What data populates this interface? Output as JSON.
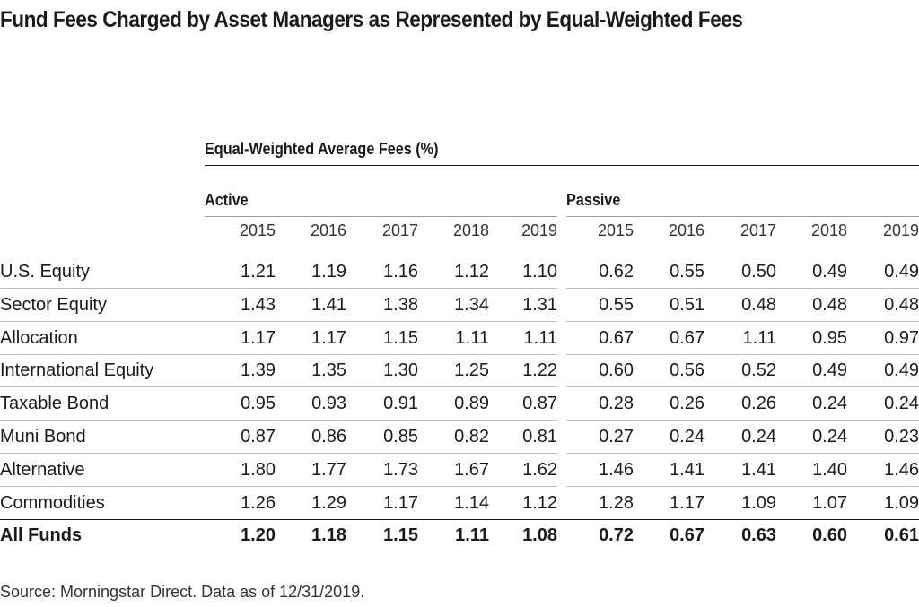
{
  "chart_data": {
    "type": "table",
    "title": "Fund Fees Charged by Asset Managers as Represented by Equal-Weighted Fees",
    "table_header": "Equal-Weighted Average Fees (%)",
    "groups": [
      "Active",
      "Passive"
    ],
    "years": [
      "2015",
      "2016",
      "2017",
      "2018",
      "2019"
    ],
    "rows": [
      {
        "label": "U.S. Equity",
        "active": [
          "1.21",
          "1.19",
          "1.16",
          "1.12",
          "1.10"
        ],
        "passive": [
          "0.62",
          "0.55",
          "0.50",
          "0.49",
          "0.49"
        ]
      },
      {
        "label": "Sector Equity",
        "active": [
          "1.43",
          "1.41",
          "1.38",
          "1.34",
          "1.31"
        ],
        "passive": [
          "0.55",
          "0.51",
          "0.48",
          "0.48",
          "0.48"
        ]
      },
      {
        "label": "Allocation",
        "active": [
          "1.17",
          "1.17",
          "1.15",
          "1.11",
          "1.11"
        ],
        "passive": [
          "0.67",
          "0.67",
          "1.11",
          "0.95",
          "0.97"
        ]
      },
      {
        "label": "International Equity",
        "active": [
          "1.39",
          "1.35",
          "1.30",
          "1.25",
          "1.22"
        ],
        "passive": [
          "0.60",
          "0.56",
          "0.52",
          "0.49",
          "0.49"
        ]
      },
      {
        "label": "Taxable Bond",
        "active": [
          "0.95",
          "0.93",
          "0.91",
          "0.89",
          "0.87"
        ],
        "passive": [
          "0.28",
          "0.26",
          "0.26",
          "0.24",
          "0.24"
        ]
      },
      {
        "label": "Muni Bond",
        "active": [
          "0.87",
          "0.86",
          "0.85",
          "0.82",
          "0.81"
        ],
        "passive": [
          "0.27",
          "0.24",
          "0.24",
          "0.24",
          "0.23"
        ]
      },
      {
        "label": "Alternative",
        "active": [
          "1.80",
          "1.77",
          "1.73",
          "1.67",
          "1.62"
        ],
        "passive": [
          "1.46",
          "1.41",
          "1.41",
          "1.40",
          "1.46"
        ]
      },
      {
        "label": "Commodities",
        "active": [
          "1.26",
          "1.29",
          "1.17",
          "1.14",
          "1.12"
        ],
        "passive": [
          "1.28",
          "1.17",
          "1.09",
          "1.07",
          "1.09"
        ]
      }
    ],
    "total": {
      "label": "All Funds",
      "active": [
        "1.20",
        "1.18",
        "1.15",
        "1.11",
        "1.08"
      ],
      "passive": [
        "0.72",
        "0.67",
        "0.63",
        "0.60",
        "0.61"
      ]
    },
    "source": "Source: Morningstar Direct. Data as of 12/31/2019."
  }
}
